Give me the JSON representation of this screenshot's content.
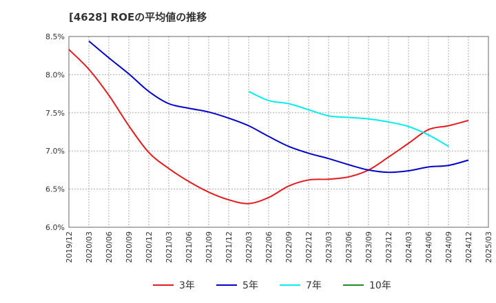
{
  "chart_data": {
    "type": "line",
    "title": "[4628]  ROEの平均値の推移",
    "xlabel": "",
    "ylabel": "",
    "ylim": [
      6.0,
      8.5
    ],
    "y_ticks": [
      {
        "value": 6.0,
        "label": "6.0%"
      },
      {
        "value": 6.5,
        "label": "6.5%"
      },
      {
        "value": 7.0,
        "label": "7.0%"
      },
      {
        "value": 7.5,
        "label": "7.5%"
      },
      {
        "value": 8.0,
        "label": "8.0%"
      },
      {
        "value": 8.5,
        "label": "8.5%"
      }
    ],
    "x_ticks": [
      "2019/12",
      "2020/03",
      "2020/06",
      "2020/09",
      "2020/12",
      "2021/03",
      "2021/06",
      "2021/09",
      "2021/12",
      "2022/03",
      "2022/06",
      "2022/09",
      "2022/12",
      "2023/03",
      "2023/06",
      "2023/09",
      "2023/12",
      "2024/03",
      "2024/06",
      "2024/09",
      "2024/12",
      "2025/03"
    ],
    "grid": true,
    "legend_position": "bottom",
    "series": [
      {
        "name": "3年",
        "color": "#e41a1c",
        "start_index": 0,
        "values": [
          8.33,
          8.07,
          7.73,
          7.33,
          6.98,
          6.77,
          6.6,
          6.46,
          6.36,
          6.31,
          6.39,
          6.54,
          6.62,
          6.63,
          6.66,
          6.75,
          6.92,
          7.1,
          7.28,
          7.33,
          7.4
        ]
      },
      {
        "name": "5年",
        "color": "#0000cc",
        "start_index": 1,
        "values": [
          8.44,
          8.22,
          8.01,
          7.78,
          7.62,
          7.56,
          7.51,
          7.43,
          7.33,
          7.19,
          7.06,
          6.97,
          6.9,
          6.82,
          6.75,
          6.72,
          6.74,
          6.79,
          6.81,
          6.88
        ]
      },
      {
        "name": "7年",
        "color": "#00eeee",
        "start_index": 9,
        "values": [
          7.78,
          7.66,
          7.62,
          7.54,
          7.46,
          7.44,
          7.42,
          7.38,
          7.32,
          7.21,
          7.06
        ]
      },
      {
        "name": "10年",
        "color": "#228b22",
        "start_index": 0,
        "values": []
      }
    ]
  }
}
